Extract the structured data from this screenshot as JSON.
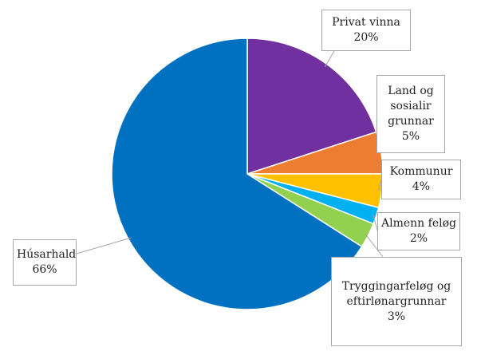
{
  "chart_data": {
    "type": "pie",
    "categories": [
      "Privat vinna",
      "Land og sosialir grunnar",
      "Kommunur",
      "Almenn feløg",
      "Tryggingarfeløg og eftirlønargrunnar",
      "Húsarhald"
    ],
    "values": [
      20,
      5,
      4,
      2,
      3,
      66
    ],
    "value_labels": [
      "20%",
      "5%",
      "4%",
      "2%",
      "3%",
      "66%"
    ],
    "colors": [
      "#7030a0",
      "#ed7d31",
      "#ffc000",
      "#00b0f0",
      "#92d050",
      "#0070c0"
    ]
  }
}
